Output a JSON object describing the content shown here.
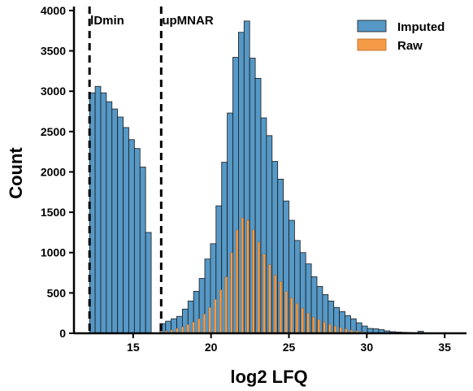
{
  "chart_data": {
    "type": "bar",
    "title": "",
    "xlabel": "log2 LFQ",
    "ylabel": "Count",
    "xlim": [
      11.2,
      36.4
    ],
    "ylim": [
      0,
      4050
    ],
    "xticks": [
      15,
      20,
      25,
      30,
      35
    ],
    "yticks": [
      0,
      500,
      1000,
      1500,
      2000,
      2500,
      3000,
      3500,
      4000
    ],
    "grid": false,
    "legend": "top-right",
    "colors": {
      "Imputed": "#5698c6",
      "Raw": "#f59b48",
      "edge": "#1a1a1a"
    },
    "series": [
      {
        "name": "Imputed",
        "bin_width": 0.36,
        "bins": [
          [
            12.2,
            2980
          ],
          [
            12.56,
            3060
          ],
          [
            12.92,
            2980
          ],
          [
            13.28,
            2870
          ],
          [
            13.64,
            2780
          ],
          [
            14.0,
            2680
          ],
          [
            14.36,
            2550
          ],
          [
            14.72,
            2400
          ],
          [
            15.08,
            2290
          ],
          [
            15.44,
            2060
          ],
          [
            15.8,
            1250
          ],
          [
            16.72,
            120
          ],
          [
            17.08,
            150
          ],
          [
            17.44,
            180
          ],
          [
            17.8,
            210
          ],
          [
            18.16,
            300
          ],
          [
            18.52,
            400
          ],
          [
            18.88,
            520
          ],
          [
            19.24,
            680
          ],
          [
            19.6,
            920
          ],
          [
            19.96,
            1110
          ],
          [
            20.32,
            1580
          ],
          [
            20.68,
            2120
          ],
          [
            21.04,
            2730
          ],
          [
            21.4,
            3420
          ],
          [
            21.76,
            3730
          ],
          [
            22.12,
            3870
          ],
          [
            22.48,
            3410
          ],
          [
            22.84,
            3160
          ],
          [
            23.2,
            2670
          ],
          [
            23.56,
            2450
          ],
          [
            23.92,
            2130
          ],
          [
            24.28,
            1910
          ],
          [
            24.64,
            1640
          ],
          [
            25.0,
            1400
          ],
          [
            25.36,
            1150
          ],
          [
            25.72,
            1000
          ],
          [
            26.08,
            860
          ],
          [
            26.44,
            700
          ],
          [
            26.8,
            580
          ],
          [
            27.16,
            480
          ],
          [
            27.52,
            400
          ],
          [
            27.88,
            320
          ],
          [
            28.24,
            270
          ],
          [
            28.6,
            220
          ],
          [
            28.96,
            180
          ],
          [
            29.32,
            130
          ],
          [
            29.68,
            90
          ],
          [
            30.04,
            60
          ],
          [
            30.4,
            55
          ],
          [
            30.76,
            45
          ],
          [
            31.12,
            30
          ],
          [
            31.48,
            20
          ],
          [
            31.84,
            15
          ],
          [
            32.2,
            12
          ],
          [
            32.56,
            10
          ],
          [
            32.92,
            8
          ],
          [
            33.28,
            25
          ]
        ]
      },
      {
        "name": "Raw",
        "bin_width": 0.14,
        "bins": [
          [
            16.7,
            20
          ],
          [
            17.05,
            30
          ],
          [
            17.4,
            40
          ],
          [
            17.75,
            60
          ],
          [
            18.1,
            80
          ],
          [
            18.45,
            110
          ],
          [
            18.8,
            140
          ],
          [
            19.15,
            180
          ],
          [
            19.5,
            240
          ],
          [
            19.85,
            320
          ],
          [
            20.2,
            420
          ],
          [
            20.55,
            540
          ],
          [
            20.9,
            700
          ],
          [
            21.25,
            1000
          ],
          [
            21.6,
            1280
          ],
          [
            21.95,
            1430
          ],
          [
            22.3,
            1400
          ],
          [
            22.65,
            1280
          ],
          [
            23.0,
            1130
          ],
          [
            23.35,
            980
          ],
          [
            23.7,
            850
          ],
          [
            24.05,
            720
          ],
          [
            24.4,
            640
          ],
          [
            24.75,
            520
          ],
          [
            25.1,
            440
          ],
          [
            25.45,
            370
          ],
          [
            25.8,
            310
          ],
          [
            26.15,
            250
          ],
          [
            26.5,
            200
          ],
          [
            26.85,
            170
          ],
          [
            27.2,
            140
          ],
          [
            27.55,
            110
          ],
          [
            27.9,
            90
          ],
          [
            28.25,
            70
          ],
          [
            28.6,
            55
          ],
          [
            28.95,
            40
          ],
          [
            29.3,
            30
          ],
          [
            29.65,
            20
          ],
          [
            30.0,
            12
          ],
          [
            30.5,
            6
          ],
          [
            31.0,
            3
          ],
          [
            33.3,
            2
          ]
        ]
      }
    ],
    "annotations": [
      {
        "text": "lDmin",
        "x": 12.2,
        "style": "dashed-vline"
      },
      {
        "text": "upMNAR",
        "x": 16.8,
        "style": "dashed-vline"
      }
    ]
  }
}
